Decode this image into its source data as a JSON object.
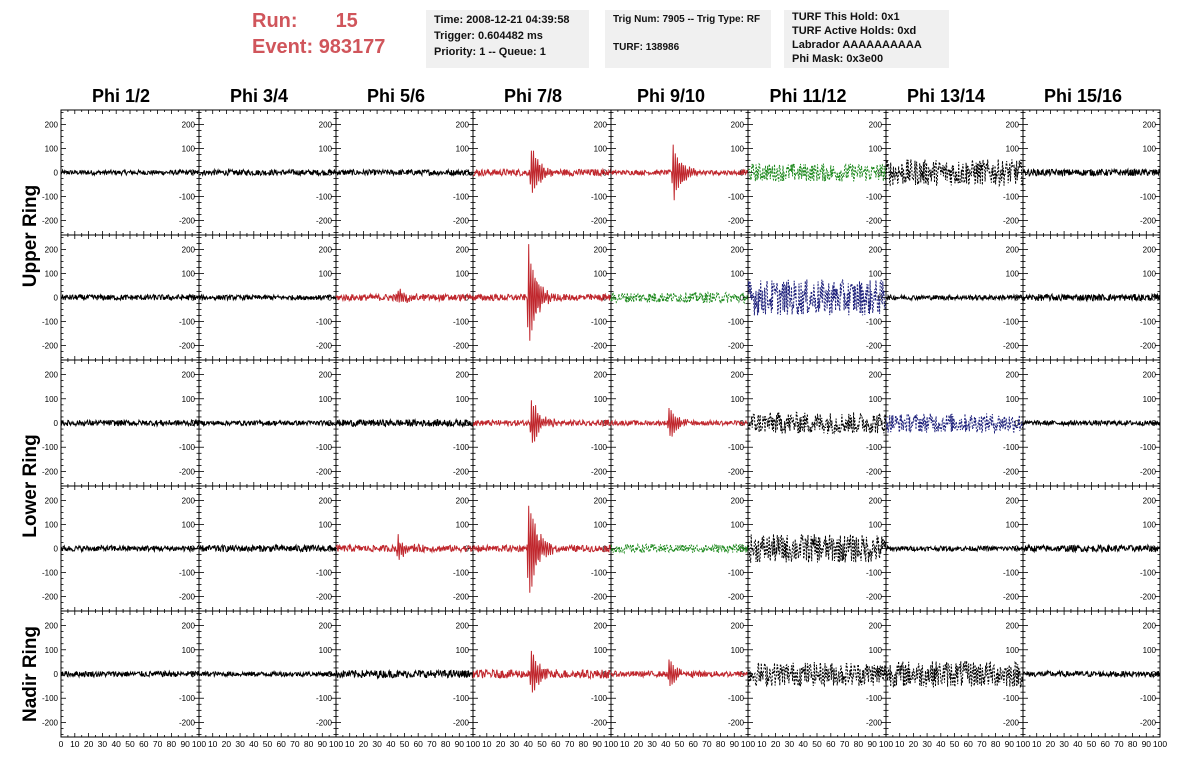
{
  "header": {
    "run_label": "Run:",
    "run_value": "15",
    "event_label": "Event:",
    "event_value": "983177"
  },
  "info_boxes": {
    "time": "Time: 2008-12-21 04:39:58",
    "trigger": "Trigger: 0.604482 ms",
    "priority": "Priority: 1 -- Queue: 1",
    "trig_num": "Trig Num: 7905 -- Trig Type: RF",
    "turf": "TURF: 138986",
    "turf_this_hold": "TURF This Hold: 0x1",
    "turf_active_holds": "TURF Active Holds: 0xd",
    "labrador": "Labrador AAAAAAAAAA",
    "phi_mask": "Phi Mask: 0x3e00"
  },
  "chart_data": {
    "type": "line",
    "columns": [
      "Phi 1/2",
      "Phi 3/4",
      "Phi 5/6",
      "Phi 7/8",
      "Phi 9/10",
      "Phi 11/12",
      "Phi 13/14",
      "Phi 15/16"
    ],
    "rows": [
      "Upper Ring",
      "Upper Ring",
      "Lower Ring",
      "Lower Ring",
      "Nadir Ring"
    ],
    "ring_labels": [
      "Upper Ring",
      "Lower Ring",
      "Nadir Ring"
    ],
    "ylim": [
      -260,
      260
    ],
    "xlim": [
      0,
      100
    ],
    "y_ticks": [
      -200,
      -100,
      0,
      100,
      200
    ],
    "y_tick_labels": [
      "-200",
      "-100",
      "0",
      "100",
      "200"
    ],
    "x_tick_labels": [
      "0",
      "10",
      "20",
      "30",
      "40",
      "50",
      "60",
      "70",
      "80",
      "90",
      "100"
    ],
    "colors": {
      "black": "#000000",
      "red": "#c0272d",
      "green": "#1f8a1f",
      "blue": "#1c1f7a"
    },
    "panels": [
      [
        {
          "color": "black",
          "noise": 10,
          "pulse_center": 0,
          "pulse_amp": 0,
          "dashed": false
        },
        {
          "color": "black",
          "noise": 12,
          "pulse_center": 0,
          "pulse_amp": 0,
          "dashed": false
        },
        {
          "color": "black",
          "noise": 12,
          "pulse_center": 0,
          "pulse_amp": 0,
          "dashed": false
        },
        {
          "color": "red",
          "noise": 14,
          "pulse_center": 42,
          "pulse_amp": 120,
          "dashed": false
        },
        {
          "color": "red",
          "noise": 10,
          "pulse_center": 45,
          "pulse_amp": 140,
          "dashed": false
        },
        {
          "color": "green",
          "noise": 38,
          "pulse_center": 0,
          "pulse_amp": 0,
          "dashed": true
        },
        {
          "color": "black",
          "noise": 55,
          "pulse_center": 0,
          "pulse_amp": 0,
          "dashed": true
        },
        {
          "color": "black",
          "noise": 14,
          "pulse_center": 0,
          "pulse_amp": 0,
          "dashed": false
        }
      ],
      [
        {
          "color": "black",
          "noise": 12,
          "pulse_center": 0,
          "pulse_amp": 0,
          "dashed": false
        },
        {
          "color": "black",
          "noise": 10,
          "pulse_center": 0,
          "pulse_amp": 0,
          "dashed": false
        },
        {
          "color": "red",
          "noise": 14,
          "pulse_center": 45,
          "pulse_amp": 45,
          "dashed": false
        },
        {
          "color": "red",
          "noise": 14,
          "pulse_center": 40,
          "pulse_amp": 260,
          "dashed": false
        },
        {
          "color": "green",
          "noise": 22,
          "pulse_center": 0,
          "pulse_amp": 0,
          "dashed": true
        },
        {
          "color": "blue",
          "noise": 75,
          "pulse_center": 0,
          "pulse_amp": 0,
          "dashed": true
        },
        {
          "color": "black",
          "noise": 10,
          "pulse_center": 0,
          "pulse_amp": 0,
          "dashed": false
        },
        {
          "color": "black",
          "noise": 14,
          "pulse_center": 0,
          "pulse_amp": 0,
          "dashed": false
        }
      ],
      [
        {
          "color": "black",
          "noise": 12,
          "pulse_center": 0,
          "pulse_amp": 0,
          "dashed": false
        },
        {
          "color": "black",
          "noise": 10,
          "pulse_center": 0,
          "pulse_amp": 0,
          "dashed": false
        },
        {
          "color": "black",
          "noise": 14,
          "pulse_center": 0,
          "pulse_amp": 0,
          "dashed": false
        },
        {
          "color": "red",
          "noise": 12,
          "pulse_center": 42,
          "pulse_amp": 120,
          "dashed": false
        },
        {
          "color": "red",
          "noise": 10,
          "pulse_center": 42,
          "pulse_amp": 80,
          "dashed": false
        },
        {
          "color": "black",
          "noise": 45,
          "pulse_center": 0,
          "pulse_amp": 0,
          "dashed": true
        },
        {
          "color": "blue",
          "noise": 40,
          "pulse_center": 0,
          "pulse_amp": 0,
          "dashed": true
        },
        {
          "color": "black",
          "noise": 10,
          "pulse_center": 0,
          "pulse_amp": 0,
          "dashed": false
        }
      ],
      [
        {
          "color": "black",
          "noise": 12,
          "pulse_center": 0,
          "pulse_amp": 0,
          "dashed": false
        },
        {
          "color": "black",
          "noise": 14,
          "pulse_center": 0,
          "pulse_amp": 0,
          "dashed": false
        },
        {
          "color": "red",
          "noise": 14,
          "pulse_center": 45,
          "pulse_amp": 55,
          "dashed": false
        },
        {
          "color": "red",
          "noise": 14,
          "pulse_center": 40,
          "pulse_amp": 250,
          "dashed": false
        },
        {
          "color": "green",
          "noise": 18,
          "pulse_center": 0,
          "pulse_amp": 0,
          "dashed": true
        },
        {
          "color": "black",
          "noise": 60,
          "pulse_center": 0,
          "pulse_amp": 0,
          "dashed": true
        },
        {
          "color": "black",
          "noise": 10,
          "pulse_center": 0,
          "pulse_amp": 0,
          "dashed": false
        },
        {
          "color": "black",
          "noise": 14,
          "pulse_center": 0,
          "pulse_amp": 0,
          "dashed": false
        }
      ],
      [
        {
          "color": "black",
          "noise": 12,
          "pulse_center": 0,
          "pulse_amp": 0,
          "dashed": false
        },
        {
          "color": "black",
          "noise": 10,
          "pulse_center": 0,
          "pulse_amp": 0,
          "dashed": false
        },
        {
          "color": "black",
          "noise": 16,
          "pulse_center": 0,
          "pulse_amp": 0,
          "dashed": false
        },
        {
          "color": "red",
          "noise": 18,
          "pulse_center": 42,
          "pulse_amp": 110,
          "dashed": false
        },
        {
          "color": "red",
          "noise": 12,
          "pulse_center": 42,
          "pulse_amp": 70,
          "dashed": false
        },
        {
          "color": "black",
          "noise": 50,
          "pulse_center": 0,
          "pulse_amp": 0,
          "dashed": true
        },
        {
          "color": "black",
          "noise": 55,
          "pulse_center": 0,
          "pulse_amp": 0,
          "dashed": true
        },
        {
          "color": "black",
          "noise": 12,
          "pulse_center": 0,
          "pulse_amp": 0,
          "dashed": false
        }
      ]
    ]
  }
}
